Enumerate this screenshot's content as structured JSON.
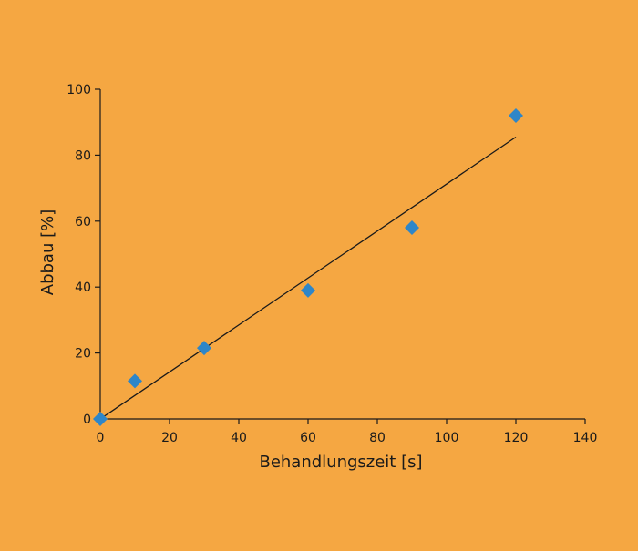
{
  "colors": {
    "background": "#F5A742",
    "marker": "#2E86C8",
    "axis": "#1a1a1a",
    "fit_line": "#1a1a1a"
  },
  "chart_data": {
    "type": "scatter",
    "title": "",
    "xlabel": "Behandlungszeit [s]",
    "ylabel": "Abbau [%]",
    "xlim": [
      0,
      140
    ],
    "ylim": [
      0,
      100
    ],
    "xticks": [
      0,
      20,
      40,
      60,
      80,
      100,
      120,
      140
    ],
    "yticks": [
      0,
      20,
      40,
      60,
      80,
      100
    ],
    "grid": false,
    "marker": "diamond",
    "series": [
      {
        "points": [
          {
            "x": 0,
            "y": 0
          },
          {
            "x": 10,
            "y": 11.5
          },
          {
            "x": 30,
            "y": 21.5
          },
          {
            "x": 60,
            "y": 39
          },
          {
            "x": 90,
            "y": 58
          },
          {
            "x": 120,
            "y": 92
          }
        ]
      }
    ],
    "trendline": {
      "type": "linear",
      "from": {
        "x": 0,
        "y": 0
      },
      "to": {
        "x": 120,
        "y": 85.5
      }
    }
  }
}
